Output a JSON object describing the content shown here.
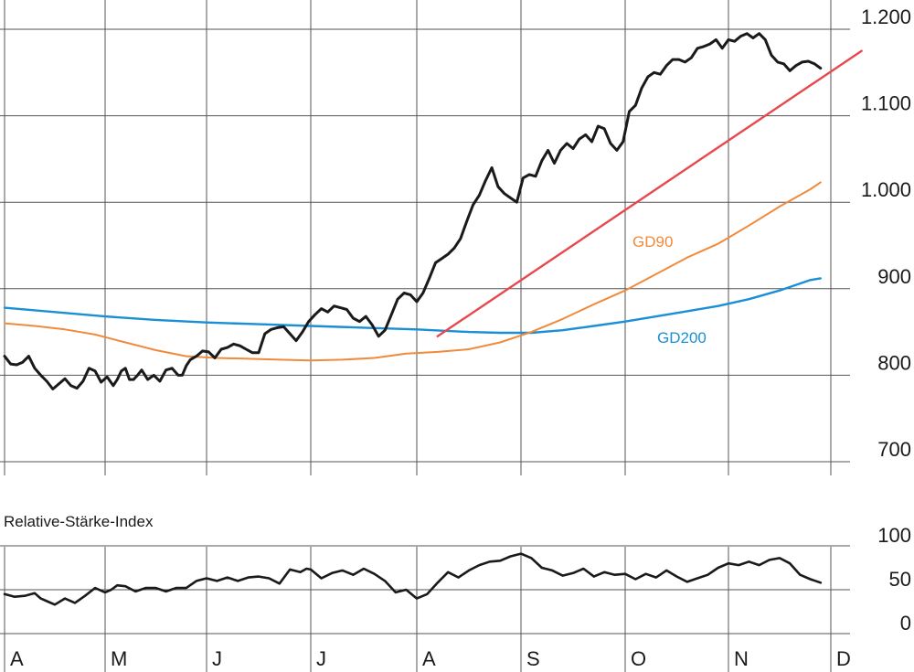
{
  "chart_data": [
    {
      "type": "line",
      "x_labels": [
        "A",
        "M",
        "J",
        "J",
        "A",
        "S",
        "O",
        "N",
        "D"
      ],
      "y_ticks": [
        700,
        800,
        900,
        1000,
        1100,
        1200
      ],
      "y_tick_labels": [
        "700",
        "800",
        "900",
        "1.000",
        "1.100",
        "1.200"
      ],
      "ylim": [
        690,
        1225
      ],
      "xlim": [
        0,
        8.3
      ],
      "grid": true,
      "colors": {
        "price": "#1a1a1a",
        "gd90": "#f08a3c",
        "gd200": "#1a8fd6",
        "trend": "#e8474f",
        "grid": "#555555"
      },
      "series": [
        {
          "key": "price",
          "x": [
            0.0,
            0.06,
            0.12,
            0.18,
            0.24,
            0.3,
            0.36,
            0.42,
            0.48,
            0.54,
            0.6,
            0.66,
            0.72,
            0.78,
            0.84,
            0.9,
            0.96,
            1.02,
            1.08,
            1.12,
            1.16,
            1.2,
            1.24,
            1.28,
            1.32,
            1.36,
            1.42,
            1.48,
            1.54,
            1.6,
            1.66,
            1.72,
            1.76,
            1.8,
            1.84,
            1.9,
            1.96,
            2.02,
            2.08,
            2.14,
            2.2,
            2.26,
            2.32,
            2.38,
            2.44,
            2.5,
            2.56,
            2.62,
            2.68,
            2.74,
            2.8,
            2.86,
            2.92,
            2.98,
            3.04,
            3.1,
            3.16,
            3.22,
            3.28,
            3.34,
            3.4,
            3.46,
            3.52,
            3.58,
            3.64,
            3.7,
            3.76,
            3.82,
            3.88,
            3.94,
            4.0,
            4.06,
            4.12,
            4.18,
            4.24,
            4.3,
            4.36,
            4.42,
            4.48,
            4.54,
            4.6,
            4.66,
            4.72,
            4.78,
            4.84,
            4.9,
            4.96,
            5.02,
            5.08,
            5.14,
            5.2,
            5.26,
            5.32,
            5.38,
            5.44,
            5.5,
            5.56,
            5.62,
            5.68,
            5.74,
            5.8,
            5.86,
            5.92,
            5.98,
            6.04,
            6.1,
            6.16,
            6.22,
            6.28,
            6.34,
            6.4,
            6.46,
            6.52,
            6.58,
            6.64,
            6.7,
            6.76,
            6.82,
            6.88,
            6.94,
            7.0,
            7.06,
            7.12,
            7.18,
            7.24,
            7.3,
            7.36,
            7.42,
            7.48,
            7.54,
            7.6,
            7.66,
            7.72,
            7.78,
            7.84,
            7.9
          ],
          "values": [
            822,
            813,
            812,
            815,
            822,
            808,
            800,
            793,
            784,
            790,
            796,
            788,
            785,
            793,
            808,
            805,
            792,
            798,
            788,
            795,
            805,
            808,
            795,
            795,
            800,
            806,
            795,
            800,
            793,
            806,
            808,
            800,
            800,
            811,
            818,
            822,
            828,
            827,
            820,
            830,
            832,
            836,
            834,
            830,
            826,
            826,
            848,
            853,
            855,
            856,
            848,
            840,
            850,
            862,
            870,
            877,
            873,
            880,
            878,
            876,
            866,
            862,
            868,
            858,
            845,
            852,
            870,
            888,
            895,
            893,
            885,
            895,
            912,
            930,
            935,
            940,
            947,
            958,
            978,
            997,
            1008,
            1025,
            1040,
            1018,
            1010,
            1005,
            1000,
            1028,
            1032,
            1030,
            1048,
            1060,
            1045,
            1060,
            1068,
            1062,
            1073,
            1078,
            1070,
            1088,
            1085,
            1068,
            1060,
            1070,
            1105,
            1112,
            1132,
            1145,
            1150,
            1148,
            1158,
            1165,
            1165,
            1162,
            1167,
            1178,
            1180,
            1183,
            1188,
            1178,
            1188,
            1186,
            1192,
            1195,
            1190,
            1195,
            1188,
            1170,
            1162,
            1160,
            1152,
            1158,
            1162,
            1163,
            1160,
            1155
          ]
        },
        {
          "key": "gd90",
          "name": "GD90",
          "x": [
            0.0,
            0.3,
            0.6,
            0.9,
            1.2,
            1.5,
            1.8,
            2.1,
            2.4,
            2.7,
            3.0,
            3.3,
            3.6,
            3.9,
            4.2,
            4.5,
            4.8,
            5.1,
            5.4,
            5.7,
            6.0,
            6.3,
            6.6,
            6.9,
            7.2,
            7.5,
            7.8,
            7.9
          ],
          "values": [
            860,
            857,
            853,
            847,
            838,
            829,
            822,
            820,
            819,
            818,
            817,
            818,
            820,
            825,
            827,
            830,
            838,
            850,
            865,
            882,
            898,
            917,
            936,
            952,
            973,
            995,
            1015,
            1023
          ]
        },
        {
          "key": "gd200",
          "name": "GD200",
          "x": [
            0.0,
            0.5,
            1.0,
            1.5,
            2.0,
            2.5,
            3.0,
            3.5,
            4.0,
            4.5,
            4.8,
            5.1,
            5.4,
            5.7,
            6.0,
            6.3,
            6.6,
            6.9,
            7.2,
            7.5,
            7.8,
            7.9
          ],
          "values": [
            878,
            873,
            868,
            864,
            861,
            859,
            857,
            855,
            853,
            850,
            849,
            849,
            852,
            857,
            862,
            868,
            874,
            880,
            888,
            898,
            910,
            912
          ]
        },
        {
          "key": "trend",
          "x": [
            4.2,
            8.3
          ],
          "values": [
            845,
            1175
          ]
        }
      ],
      "annotations": [
        {
          "text": "GD90",
          "series": "gd90"
        },
        {
          "text": "GD200",
          "series": "gd200"
        }
      ]
    },
    {
      "type": "line",
      "title": "Relative-Stärke-Index",
      "y_ticks": [
        0,
        50,
        100
      ],
      "y_tick_labels": [
        "0",
        "50",
        "100"
      ],
      "ylim": [
        0,
        100
      ],
      "xlim": [
        0,
        8.3
      ],
      "grid": true,
      "series": [
        {
          "key": "rsi",
          "x": [
            0.0,
            0.1,
            0.2,
            0.3,
            0.36,
            0.42,
            0.5,
            0.6,
            0.7,
            0.8,
            0.9,
            1.0,
            1.06,
            1.12,
            1.2,
            1.3,
            1.4,
            1.5,
            1.6,
            1.7,
            1.8,
            1.9,
            2.0,
            2.1,
            2.2,
            2.3,
            2.4,
            2.5,
            2.6,
            2.7,
            2.8,
            2.9,
            2.96,
            3.0,
            3.1,
            3.2,
            3.3,
            3.4,
            3.5,
            3.6,
            3.7,
            3.8,
            3.9,
            4.0,
            4.1,
            4.2,
            4.3,
            4.4,
            4.5,
            4.6,
            4.7,
            4.8,
            4.9,
            5.0,
            5.1,
            5.2,
            5.3,
            5.4,
            5.5,
            5.6,
            5.7,
            5.8,
            5.9,
            6.0,
            6.1,
            6.2,
            6.3,
            6.4,
            6.5,
            6.6,
            6.7,
            6.8,
            6.9,
            7.0,
            7.1,
            7.2,
            7.3,
            7.4,
            7.5,
            7.6,
            7.7,
            7.8,
            7.9
          ],
          "values": [
            45,
            42,
            43,
            46,
            40,
            37,
            33,
            40,
            35,
            43,
            52,
            47,
            50,
            55,
            54,
            48,
            52,
            52,
            48,
            52,
            52,
            60,
            63,
            60,
            64,
            60,
            64,
            65,
            63,
            57,
            73,
            70,
            74,
            73,
            63,
            69,
            72,
            67,
            74,
            68,
            60,
            47,
            50,
            40,
            45,
            58,
            70,
            64,
            72,
            78,
            82,
            83,
            88,
            91,
            86,
            75,
            72,
            66,
            69,
            74,
            65,
            70,
            67,
            68,
            62,
            68,
            64,
            72,
            65,
            59,
            63,
            67,
            75,
            80,
            78,
            82,
            78,
            84,
            86,
            80,
            67,
            62,
            58
          ]
        }
      ]
    }
  ]
}
